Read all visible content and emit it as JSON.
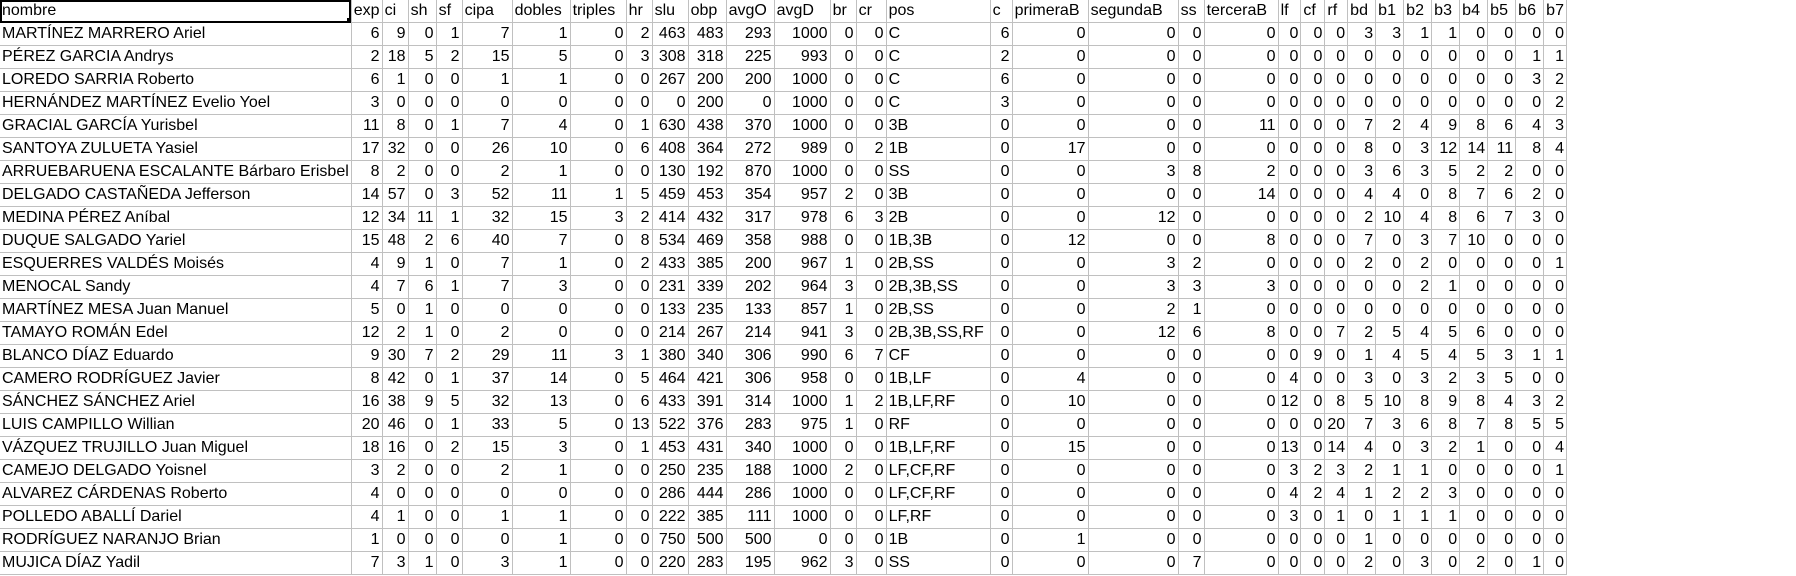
{
  "sheet": {
    "columns": [
      "nombre",
      "exp",
      "ci",
      "sh",
      "sf",
      "cipa",
      "dobles",
      "triples",
      "hr",
      "slu",
      "obp",
      "avgO",
      "avgD",
      "br",
      "cr",
      "pos",
      "c",
      "primeraB",
      "segundaB",
      "ss",
      "terceraB",
      "lf",
      "cf",
      "rf",
      "bd",
      "b1",
      "b2",
      "b3",
      "b4",
      "b5",
      "b6",
      "b7"
    ],
    "rows": [
      [
        "MARTÍNEZ MARRERO Ariel",
        "6",
        "9",
        "0",
        "1",
        "7",
        "1",
        "0",
        "2",
        "463",
        "483",
        "293",
        "1000",
        "0",
        "0",
        "C",
        "6",
        "0",
        "0",
        "0",
        "0",
        "0",
        "0",
        "0",
        "3",
        "3",
        "1",
        "1",
        "0",
        "0",
        "0",
        "0"
      ],
      [
        "PÉREZ GARCIA Andrys",
        "2",
        "18",
        "5",
        "2",
        "15",
        "5",
        "0",
        "3",
        "308",
        "318",
        "225",
        "993",
        "0",
        "0",
        "C",
        "2",
        "0",
        "0",
        "0",
        "0",
        "0",
        "0",
        "0",
        "0",
        "0",
        "0",
        "0",
        "0",
        "0",
        "1",
        "1"
      ],
      [
        "LOREDO SARRIA Roberto",
        "6",
        "1",
        "0",
        "0",
        "1",
        "1",
        "0",
        "0",
        "267",
        "200",
        "200",
        "1000",
        "0",
        "0",
        "C",
        "6",
        "0",
        "0",
        "0",
        "0",
        "0",
        "0",
        "0",
        "0",
        "0",
        "0",
        "0",
        "0",
        "0",
        "3",
        "2"
      ],
      [
        "HERNÁNDEZ MARTÍNEZ Evelio Yoel",
        "3",
        "0",
        "0",
        "0",
        "0",
        "0",
        "0",
        "0",
        "0",
        "200",
        "0",
        "1000",
        "0",
        "0",
        "C",
        "3",
        "0",
        "0",
        "0",
        "0",
        "0",
        "0",
        "0",
        "0",
        "0",
        "0",
        "0",
        "0",
        "0",
        "0",
        "2"
      ],
      [
        "GRACIAL GARCÍA Yurisbel",
        "11",
        "8",
        "0",
        "1",
        "7",
        "4",
        "0",
        "1",
        "630",
        "438",
        "370",
        "1000",
        "0",
        "0",
        "3B",
        "0",
        "0",
        "0",
        "0",
        "11",
        "0",
        "0",
        "0",
        "7",
        "2",
        "4",
        "9",
        "8",
        "6",
        "4",
        "3"
      ],
      [
        "SANTOYA ZULUETA Yasiel",
        "17",
        "32",
        "0",
        "0",
        "26",
        "10",
        "0",
        "6",
        "408",
        "364",
        "272",
        "989",
        "0",
        "2",
        "1B",
        "0",
        "17",
        "0",
        "0",
        "0",
        "0",
        "0",
        "0",
        "8",
        "0",
        "3",
        "12",
        "14",
        "11",
        "8",
        "4"
      ],
      [
        "ARRUEBARUENA ESCALANTE Bárbaro Erisbel",
        "8",
        "2",
        "0",
        "0",
        "2",
        "1",
        "0",
        "0",
        "130",
        "192",
        "870",
        "1000",
        "0",
        "0",
        "SS",
        "0",
        "0",
        "3",
        "8",
        "2",
        "0",
        "0",
        "0",
        "3",
        "6",
        "3",
        "5",
        "2",
        "2",
        "0",
        "0"
      ],
      [
        "DELGADO CASTAÑEDA Jefferson",
        "14",
        "57",
        "0",
        "3",
        "52",
        "11",
        "1",
        "5",
        "459",
        "453",
        "354",
        "957",
        "2",
        "0",
        "3B",
        "0",
        "0",
        "0",
        "0",
        "14",
        "0",
        "0",
        "0",
        "4",
        "4",
        "0",
        "8",
        "7",
        "6",
        "2",
        "0"
      ],
      [
        "MEDINA PÉREZ Aníbal",
        "12",
        "34",
        "11",
        "1",
        "32",
        "15",
        "3",
        "2",
        "414",
        "432",
        "317",
        "978",
        "6",
        "3",
        "2B",
        "0",
        "0",
        "12",
        "0",
        "0",
        "0",
        "0",
        "0",
        "2",
        "10",
        "4",
        "8",
        "6",
        "7",
        "3",
        "0"
      ],
      [
        "DUQUE SALGADO Yariel",
        "15",
        "48",
        "2",
        "6",
        "40",
        "7",
        "0",
        "8",
        "534",
        "469",
        "358",
        "988",
        "0",
        "0",
        "1B,3B",
        "0",
        "12",
        "0",
        "0",
        "8",
        "0",
        "0",
        "0",
        "7",
        "0",
        "3",
        "7",
        "10",
        "0",
        "0",
        "0"
      ],
      [
        "ESQUERRES VALDÉS Moisés",
        "4",
        "9",
        "1",
        "0",
        "7",
        "1",
        "0",
        "2",
        "433",
        "385",
        "200",
        "967",
        "1",
        "0",
        "2B,SS",
        "0",
        "0",
        "3",
        "2",
        "0",
        "0",
        "0",
        "0",
        "2",
        "0",
        "2",
        "0",
        "0",
        "0",
        "0",
        "1"
      ],
      [
        "MENOCAL Sandy",
        "4",
        "7",
        "6",
        "1",
        "7",
        "3",
        "0",
        "0",
        "231",
        "339",
        "202",
        "964",
        "3",
        "0",
        "2B,3B,SS",
        "0",
        "0",
        "3",
        "3",
        "3",
        "0",
        "0",
        "0",
        "0",
        "0",
        "2",
        "1",
        "0",
        "0",
        "0",
        "0"
      ],
      [
        "MARTÍNEZ MESA Juan Manuel",
        "5",
        "0",
        "1",
        "0",
        "0",
        "0",
        "0",
        "0",
        "133",
        "235",
        "133",
        "857",
        "1",
        "0",
        "2B,SS",
        "0",
        "0",
        "2",
        "1",
        "0",
        "0",
        "0",
        "0",
        "0",
        "0",
        "0",
        "0",
        "0",
        "0",
        "0",
        "0"
      ],
      [
        "TAMAYO ROMÁN Edel",
        "12",
        "2",
        "1",
        "0",
        "2",
        "0",
        "0",
        "0",
        "214",
        "267",
        "214",
        "941",
        "3",
        "0",
        "2B,3B,SS,RF",
        "0",
        "0",
        "12",
        "6",
        "8",
        "0",
        "0",
        "7",
        "2",
        "5",
        "4",
        "5",
        "6",
        "0",
        "0",
        "0"
      ],
      [
        "BLANCO DÍAZ Eduardo",
        "9",
        "30",
        "7",
        "2",
        "29",
        "11",
        "3",
        "1",
        "380",
        "340",
        "306",
        "990",
        "6",
        "7",
        "CF",
        "0",
        "0",
        "0",
        "0",
        "0",
        "0",
        "9",
        "0",
        "1",
        "4",
        "5",
        "4",
        "5",
        "3",
        "1",
        "1"
      ],
      [
        "CAMERO RODRÍGUEZ Javier",
        "8",
        "42",
        "0",
        "1",
        "37",
        "14",
        "0",
        "5",
        "464",
        "421",
        "306",
        "958",
        "0",
        "0",
        "1B,LF",
        "0",
        "4",
        "0",
        "0",
        "0",
        "4",
        "0",
        "0",
        "3",
        "0",
        "3",
        "2",
        "3",
        "5",
        "0",
        "0"
      ],
      [
        "SÁNCHEZ SÁNCHEZ Ariel",
        "16",
        "38",
        "9",
        "5",
        "32",
        "13",
        "0",
        "6",
        "433",
        "391",
        "314",
        "1000",
        "1",
        "2",
        "1B,LF,RF",
        "0",
        "10",
        "0",
        "0",
        "0",
        "12",
        "0",
        "8",
        "5",
        "10",
        "8",
        "9",
        "8",
        "4",
        "3",
        "2"
      ],
      [
        "LUIS CAMPILLO Willian",
        "20",
        "46",
        "0",
        "1",
        "33",
        "5",
        "0",
        "13",
        "522",
        "376",
        "283",
        "975",
        "1",
        "0",
        "RF",
        "0",
        "0",
        "0",
        "0",
        "0",
        "0",
        "0",
        "20",
        "7",
        "3",
        "6",
        "8",
        "7",
        "8",
        "5",
        "5"
      ],
      [
        "VÁZQUEZ TRUJILLO Juan Miguel",
        "18",
        "16",
        "0",
        "2",
        "15",
        "3",
        "0",
        "1",
        "453",
        "431",
        "340",
        "1000",
        "0",
        "0",
        "1B,LF,RF",
        "0",
        "15",
        "0",
        "0",
        "0",
        "13",
        "0",
        "14",
        "4",
        "0",
        "3",
        "2",
        "1",
        "0",
        "0",
        "4"
      ],
      [
        "CAMEJO DELGADO Yoisnel",
        "3",
        "2",
        "0",
        "0",
        "2",
        "1",
        "0",
        "0",
        "250",
        "235",
        "188",
        "1000",
        "2",
        "0",
        "LF,CF,RF",
        "0",
        "0",
        "0",
        "0",
        "0",
        "3",
        "2",
        "3",
        "2",
        "1",
        "1",
        "0",
        "0",
        "0",
        "0",
        "1"
      ],
      [
        "ALVAREZ CÁRDENAS Roberto",
        "4",
        "0",
        "0",
        "0",
        "0",
        "0",
        "0",
        "0",
        "286",
        "444",
        "286",
        "1000",
        "0",
        "0",
        "LF,CF,RF",
        "0",
        "0",
        "0",
        "0",
        "0",
        "4",
        "2",
        "4",
        "1",
        "2",
        "2",
        "3",
        "0",
        "0",
        "0",
        "0"
      ],
      [
        "POLLEDO ABALLÍ Dariel",
        "4",
        "1",
        "0",
        "0",
        "1",
        "1",
        "0",
        "0",
        "222",
        "385",
        "111",
        "1000",
        "0",
        "0",
        "LF,RF",
        "0",
        "0",
        "0",
        "0",
        "0",
        "3",
        "0",
        "1",
        "0",
        "1",
        "1",
        "1",
        "0",
        "0",
        "0",
        "0"
      ],
      [
        "RODRÍGUEZ NARANJO Brian",
        "1",
        "0",
        "0",
        "0",
        "0",
        "1",
        "0",
        "0",
        "750",
        "500",
        "500",
        "0",
        "0",
        "0",
        "1B",
        "0",
        "1",
        "0",
        "0",
        "0",
        "0",
        "0",
        "0",
        "1",
        "0",
        "0",
        "0",
        "0",
        "0",
        "0",
        "0"
      ],
      [
        "MUJICA DÍAZ Yadil",
        "7",
        "3",
        "1",
        "0",
        "3",
        "1",
        "0",
        "0",
        "220",
        "283",
        "195",
        "962",
        "3",
        "0",
        "SS",
        "0",
        "0",
        "0",
        "7",
        "0",
        "0",
        "0",
        "0",
        "2",
        "0",
        "3",
        "0",
        "2",
        "0",
        "1",
        "0"
      ]
    ]
  }
}
